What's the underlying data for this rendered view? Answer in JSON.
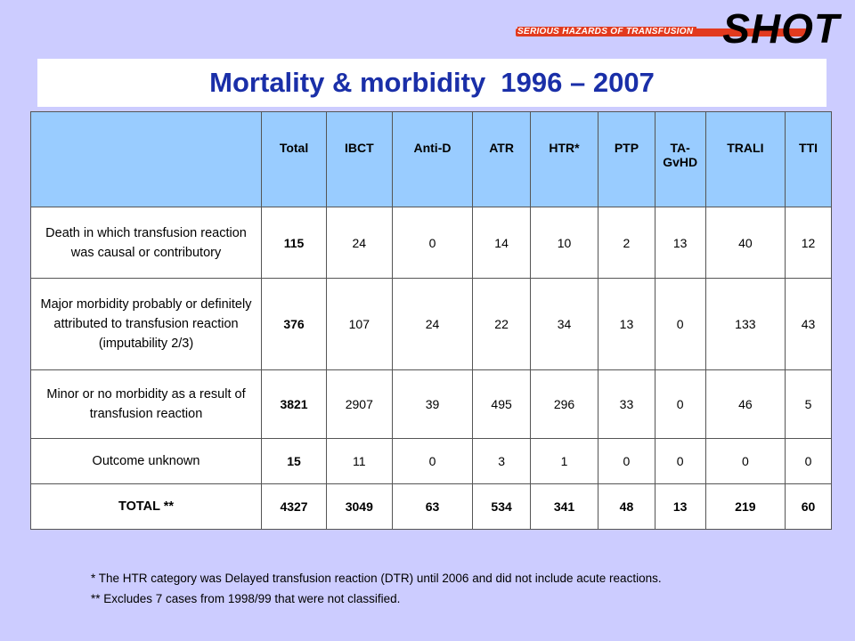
{
  "logo": {
    "subtitle": "SERIOUS HAZARDS OF TRANSFUSION",
    "name": "SHOT"
  },
  "title": "Mortality & morbidity  1996 – 2007",
  "table": {
    "headers": [
      "Total",
      "IBCT",
      "Anti-D",
      "ATR",
      "HTR*",
      "PTP",
      "TA-GvHD",
      "TRALI",
      "TTI"
    ],
    "rows": [
      {
        "label": "Death in which transfusion reaction was causal or contributory",
        "values": [
          "115",
          "24",
          "0",
          "14",
          "10",
          "2",
          "13",
          "40",
          "12"
        ]
      },
      {
        "label": "Major morbidity probably or definitely attributed to transfusion reaction (imputability 2/3)",
        "values": [
          "376",
          "107",
          "24",
          "22",
          "34",
          "13",
          "0",
          "133",
          "43"
        ]
      },
      {
        "label": "Minor or no morbidity as a result of transfusion reaction",
        "values": [
          "3821",
          "2907",
          "39",
          "495",
          "296",
          "33",
          "0",
          "46",
          "5"
        ]
      },
      {
        "label": "Outcome unknown",
        "values": [
          "15",
          "11",
          "0",
          "3",
          "1",
          "0",
          "0",
          "0",
          "0"
        ]
      },
      {
        "label": "TOTAL **",
        "values": [
          "4327",
          "3049",
          "63",
          "534",
          "341",
          "48",
          "13",
          "219",
          "60"
        ]
      }
    ]
  },
  "footnotes": [
    "*  The HTR category was Delayed transfusion reaction (DTR) until 2006 and did not include acute reactions.",
    "** Excludes 7 cases from 1998/99 that were not classified."
  ],
  "colors": {
    "background": "#ccccff",
    "title_text": "#1a2fa8",
    "header_fill": "#99ccff",
    "logo_accent": "#e23a1e"
  }
}
